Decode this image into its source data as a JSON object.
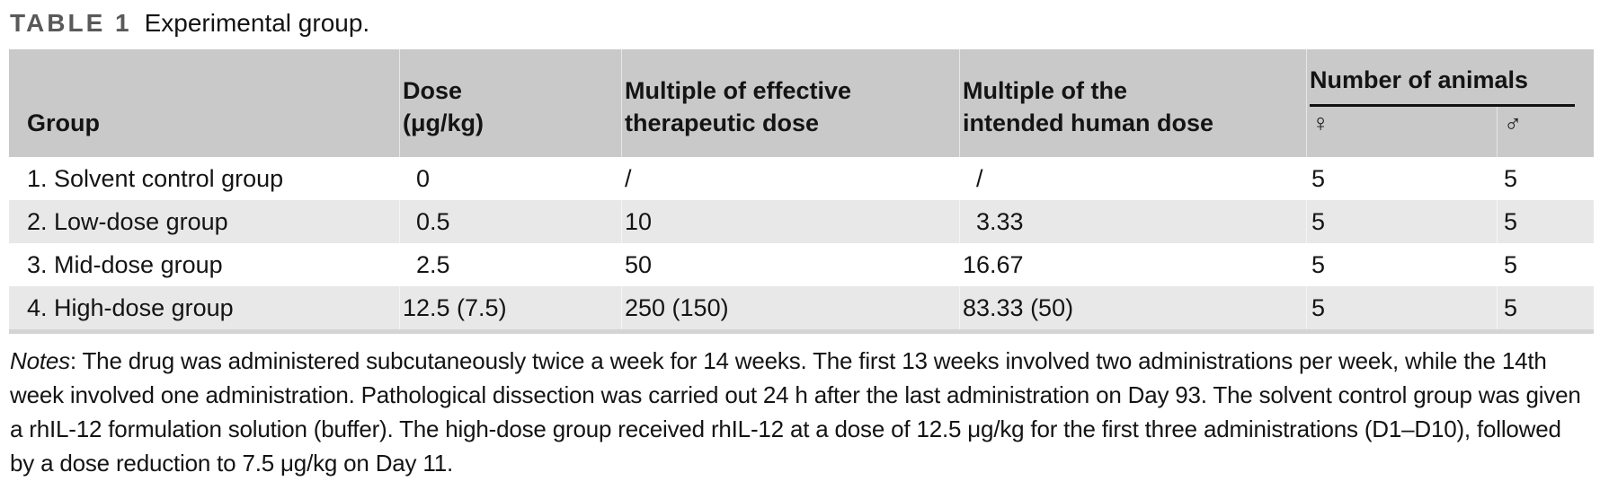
{
  "title": {
    "label": "TABLE 1",
    "caption": "Experimental group."
  },
  "table": {
    "header": {
      "group": "Group",
      "dose_line1": "Dose",
      "dose_line2": "(μg/kg)",
      "effective_line1": "Multiple of effective",
      "effective_line2": "therapeutic dose",
      "human_line1": "Multiple of the",
      "human_line2": "intended human dose",
      "animals": "Number of animals",
      "female_symbol": "♀",
      "male_symbol": "♂"
    },
    "rows": [
      [
        "1. Solvent control group",
        "0",
        "/",
        "/",
        "5",
        "5"
      ],
      [
        "2. Low-dose group",
        "0.5",
        "10",
        "3.33",
        "5",
        "5"
      ],
      [
        "3. Mid-dose group",
        "2.5",
        "50",
        "16.67",
        "5",
        "5"
      ],
      [
        "4. High-dose group",
        "12.5 (7.5)",
        "250 (150)",
        "83.33 (50)",
        "5",
        "5"
      ]
    ]
  },
  "notes": {
    "label": "Notes",
    "text": ": The drug was administered subcutaneously twice a week for 14 weeks. The first 13 weeks involved two administrations per week, while the 14th week involved one administration. Pathological dissection was carried out 24 h after the last administration on Day 93. The solvent control group was given a rhIL-12 formulation solution (buffer). The high-dose group received rhIL-12 at a dose of 12.5 μg/kg for the first three administrations (D1–D10), followed by a dose reduction to 7.5 μg/kg on Day 11."
  },
  "colors": {
    "header_bg": "#c9c9c9",
    "stripe_bg": "#e8e8e8",
    "table_bottom_rule": "#d4d4d4",
    "animals_rule": "#111111",
    "title_label": "#595959",
    "text": "#141414"
  }
}
